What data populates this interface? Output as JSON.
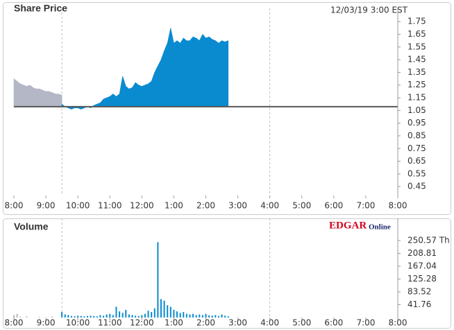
{
  "chart_data": [
    {
      "type": "area",
      "title": "Share Price",
      "subtitle": "12/03/19  3:00 EST",
      "xlim": [
        8,
        20
      ],
      "ylim": [
        0.38,
        1.8
      ],
      "xticks": [
        {
          "value": 8,
          "label": "8:00"
        },
        {
          "value": 9,
          "label": "9:00"
        },
        {
          "value": 10,
          "label": "10:00"
        },
        {
          "value": 11,
          "label": "11:00"
        },
        {
          "value": 12,
          "label": "12:00"
        },
        {
          "value": 13,
          "label": "1:00"
        },
        {
          "value": 14,
          "label": "2:00"
        },
        {
          "value": 15,
          "label": "3:00"
        },
        {
          "value": 16,
          "label": "4:00"
        },
        {
          "value": 17,
          "label": "5:00"
        },
        {
          "value": 18,
          "label": "6:00"
        },
        {
          "value": 19,
          "label": "7:00"
        },
        {
          "value": 20,
          "label": "8:00"
        }
      ],
      "yticks": [
        1.75,
        1.65,
        1.55,
        1.45,
        1.35,
        1.25,
        1.15,
        1.05,
        0.95,
        0.85,
        0.75,
        0.65,
        0.55,
        0.45
      ],
      "vlines": [
        9.5,
        16
      ],
      "baseline": 1.08,
      "series": [
        {
          "color": "#b4b7c6",
          "x": [
            8.0,
            8.1,
            8.2,
            8.3,
            8.4,
            8.5,
            8.6,
            8.7,
            8.8,
            8.9,
            9.0,
            9.1,
            9.2,
            9.3,
            9.4,
            9.5
          ],
          "values": [
            1.3,
            1.28,
            1.26,
            1.25,
            1.24,
            1.25,
            1.23,
            1.22,
            1.22,
            1.21,
            1.2,
            1.2,
            1.19,
            1.18,
            1.18,
            1.17
          ]
        },
        {
          "color": "#0a8bd0",
          "x": [
            9.5,
            9.6,
            9.7,
            9.8,
            9.9,
            10.0,
            10.1,
            10.2,
            10.3,
            10.4,
            10.5,
            10.6,
            10.7,
            10.8,
            10.9,
            11.0,
            11.1,
            11.2,
            11.3,
            11.4,
            11.5,
            11.6,
            11.7,
            11.8,
            11.9,
            12.0,
            12.1,
            12.2,
            12.3,
            12.4,
            12.5,
            12.6,
            12.7,
            12.8,
            12.9,
            13.0,
            13.1,
            13.2,
            13.3,
            13.4,
            13.5,
            13.6,
            13.7,
            13.8,
            13.9,
            14.0,
            14.1,
            14.2,
            14.3,
            14.4,
            14.5,
            14.6,
            14.7
          ],
          "values": [
            1.1,
            1.08,
            1.07,
            1.06,
            1.07,
            1.07,
            1.06,
            1.07,
            1.08,
            1.07,
            1.09,
            1.1,
            1.11,
            1.14,
            1.15,
            1.16,
            1.18,
            1.16,
            1.18,
            1.32,
            1.24,
            1.22,
            1.23,
            1.27,
            1.25,
            1.24,
            1.25,
            1.26,
            1.28,
            1.35,
            1.4,
            1.45,
            1.52,
            1.58,
            1.7,
            1.58,
            1.6,
            1.58,
            1.62,
            1.6,
            1.6,
            1.63,
            1.62,
            1.6,
            1.65,
            1.62,
            1.63,
            1.61,
            1.6,
            1.58,
            1.6,
            1.59,
            1.6
          ]
        }
      ]
    },
    {
      "type": "bar",
      "title": "Volume",
      "annotations": [
        "EDGAR",
        "Online"
      ],
      "xlim": [
        8,
        20
      ],
      "ylim": [
        0,
        300
      ],
      "xticks": [
        {
          "value": 8,
          "label": "8:00"
        },
        {
          "value": 9,
          "label": "9:00"
        },
        {
          "value": 10,
          "label": "10:00"
        },
        {
          "value": 11,
          "label": "11:00"
        },
        {
          "value": 12,
          "label": "12:00"
        },
        {
          "value": 13,
          "label": "1:00"
        },
        {
          "value": 14,
          "label": "2:00"
        },
        {
          "value": 15,
          "label": "3:00"
        },
        {
          "value": 16,
          "label": "4:00"
        },
        {
          "value": 17,
          "label": "5:00"
        },
        {
          "value": 18,
          "label": "6:00"
        },
        {
          "value": 19,
          "label": "7:00"
        },
        {
          "value": 20,
          "label": "8:00"
        }
      ],
      "yticks": [
        {
          "value": 250.57,
          "label": "250.57 Th"
        },
        208.81,
        167.04,
        125.28,
        83.52,
        41.76
      ],
      "vlines": [
        9.5,
        16
      ],
      "series": [
        {
          "color": "#b4b7c6",
          "x": [
            8.0,
            8.1,
            8.2,
            8.4,
            8.8,
            9.2
          ],
          "values": [
            8,
            12,
            3,
            4,
            2,
            3
          ]
        },
        {
          "color": "#0a8bd0",
          "x": [
            9.5,
            9.6,
            9.7,
            9.8,
            9.9,
            10.0,
            10.1,
            10.2,
            10.3,
            10.4,
            10.5,
            10.6,
            10.7,
            10.8,
            10.9,
            11.0,
            11.1,
            11.2,
            11.3,
            11.4,
            11.5,
            11.6,
            11.7,
            11.8,
            11.9,
            12.0,
            12.1,
            12.2,
            12.3,
            12.4,
            12.5,
            12.6,
            12.7,
            12.8,
            12.9,
            13.0,
            13.1,
            13.2,
            13.3,
            13.4,
            13.5,
            13.6,
            13.7,
            13.8,
            13.9,
            14.0,
            14.1,
            14.2,
            14.3,
            14.4,
            14.5,
            14.6,
            14.7
          ],
          "values": [
            18,
            10,
            8,
            5,
            4,
            6,
            5,
            4,
            5,
            6,
            5,
            4,
            8,
            6,
            10,
            12,
            8,
            35,
            20,
            15,
            25,
            10,
            8,
            6,
            5,
            8,
            12,
            22,
            18,
            30,
            245,
            60,
            55,
            40,
            35,
            25,
            20,
            15,
            18,
            12,
            10,
            12,
            8,
            10,
            8,
            12,
            7,
            6,
            8,
            5,
            10,
            6,
            4
          ]
        }
      ]
    }
  ]
}
